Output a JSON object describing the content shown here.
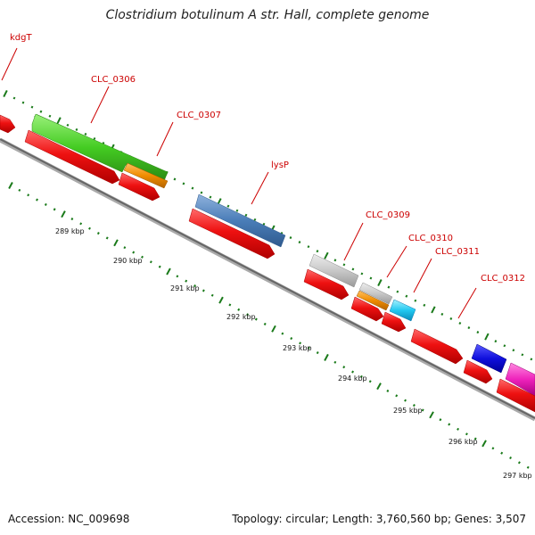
{
  "title": "Clostridium botulinum A str. Hall, complete genome",
  "footer": {
    "accession": "Accession: NC_009698",
    "summary": "Topology: circular; Length: 3,760,560 bp; Genes: 3,507"
  },
  "colors": {
    "backbone": "#777777",
    "cds": "#ee1111",
    "tick": "#1a7a1a",
    "label": "#cc0000"
  },
  "gene_labels": [
    "kdgT",
    "CLC_0306",
    "CLC_0307",
    "lysP",
    "CLC_0309",
    "CLC_0310",
    "CLC_0311",
    "CLC_0312"
  ],
  "kbp_labels": [
    "289 kbp",
    "290 kbp",
    "291 kbp",
    "292 kbp",
    "293 kbp",
    "294 kbp",
    "295 kbp",
    "296 kbp",
    "297 kbp"
  ]
}
